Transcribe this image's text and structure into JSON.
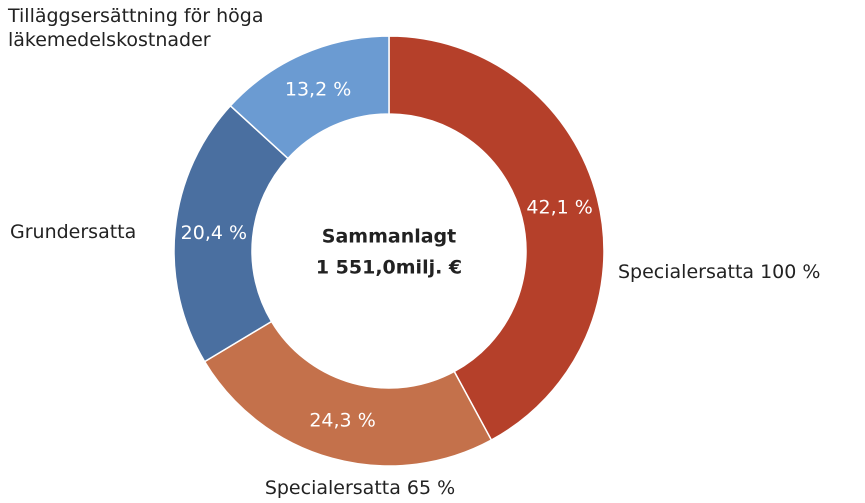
{
  "chart_data": {
    "type": "donut",
    "categories": [
      "Specialersatta 100 %",
      "Specialersatta 65 %",
      "Grundersatta",
      "Tilläggsersättning för höga läkemedelskostnader"
    ],
    "values": [
      42.1,
      24.3,
      20.4,
      13.2
    ],
    "value_labels": [
      "42,1 %",
      "24,3 %",
      "20,4 %",
      "13,2 %"
    ],
    "colors": [
      "#b5402a",
      "#c4714b",
      "#4a6fa0",
      "#6b9bd2"
    ],
    "center_label": [
      "Sammanlagt",
      "1 551,0milj. €"
    ]
  }
}
